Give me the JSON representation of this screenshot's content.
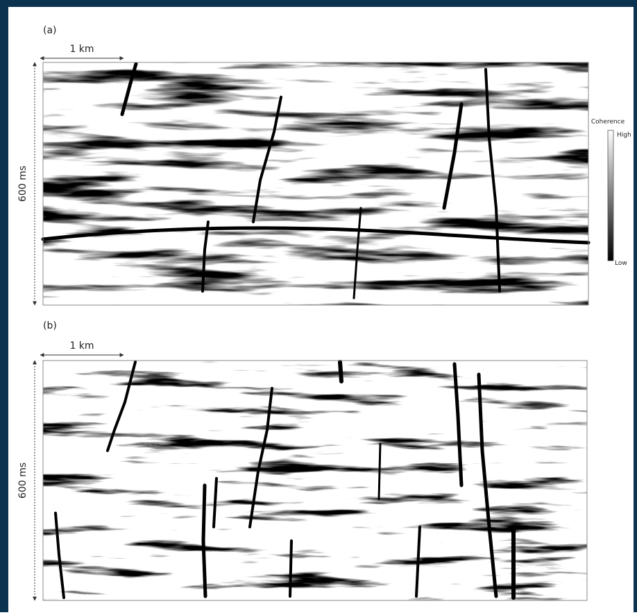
{
  "panels": [
    {
      "label": "(a)",
      "scale": "1 km",
      "depth": "600 ms"
    },
    {
      "label": "(b)",
      "scale": "1 km",
      "depth": "600 ms"
    }
  ],
  "colorbar": {
    "title": "Coherence",
    "high": "High",
    "low": "Low"
  }
}
